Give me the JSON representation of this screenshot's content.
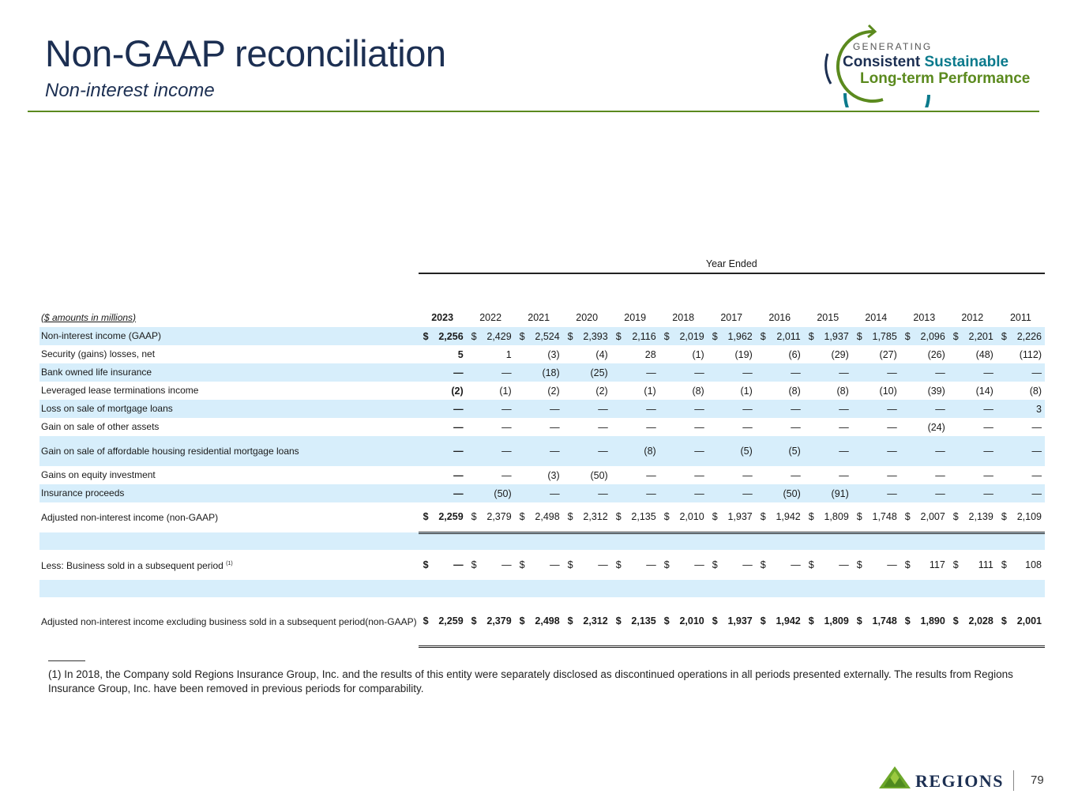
{
  "header": {
    "title": "Non-GAAP reconciliation",
    "subtitle": "Non-interest income"
  },
  "logo": {
    "line1": "GENERATING",
    "line2a": "Consistent",
    "line2b": "Sustainable",
    "line3": "Long-term Performance"
  },
  "table": {
    "year_ended": "Year Ended",
    "unit_label": "($ amounts in millions)",
    "years": [
      "2023",
      "2022",
      "2021",
      "2020",
      "2019",
      "2018",
      "2017",
      "2016",
      "2015",
      "2014",
      "2013",
      "2012",
      "2011"
    ],
    "rows": [
      {
        "label": "Non-interest income (GAAP)",
        "dollar": true,
        "values": [
          "2,256",
          "2,429",
          "2,524",
          "2,393",
          "2,116",
          "2,019",
          "1,962",
          "2,011",
          "1,937",
          "1,785",
          "2,096",
          "2,201",
          "2,226"
        ]
      },
      {
        "label": "Security (gains) losses, net",
        "values": [
          "5",
          "1",
          "(3)",
          "(4)",
          "28",
          "(1)",
          "(19)",
          "(6)",
          "(29)",
          "(27)",
          "(26)",
          "(48)",
          "(112)"
        ]
      },
      {
        "label": "Bank owned life insurance",
        "values": [
          "—",
          "—",
          "(18)",
          "(25)",
          "—",
          "—",
          "—",
          "—",
          "—",
          "—",
          "—",
          "—",
          "—"
        ]
      },
      {
        "label": "Leveraged lease terminations income",
        "values": [
          "(2)",
          "(1)",
          "(2)",
          "(2)",
          "(1)",
          "(8)",
          "(1)",
          "(8)",
          "(8)",
          "(10)",
          "(39)",
          "(14)",
          "(8)"
        ]
      },
      {
        "label": "Loss on sale of mortgage loans",
        "values": [
          "—",
          "—",
          "—",
          "—",
          "—",
          "—",
          "—",
          "—",
          "—",
          "—",
          "—",
          "—",
          "3"
        ]
      },
      {
        "label": "Gain on sale of other assets",
        "values": [
          "—",
          "—",
          "—",
          "—",
          "—",
          "—",
          "—",
          "—",
          "—",
          "—",
          "(24)",
          "—",
          "—"
        ]
      },
      {
        "label": "Gain on sale of affordable housing residential mortgage loans",
        "values": [
          "—",
          "—",
          "—",
          "—",
          "(8)",
          "—",
          "(5)",
          "(5)",
          "—",
          "—",
          "—",
          "—",
          "—"
        ]
      },
      {
        "label": "Gains on equity investment",
        "values": [
          "—",
          "—",
          "(3)",
          "(50)",
          "—",
          "—",
          "—",
          "—",
          "—",
          "—",
          "—",
          "—",
          "—"
        ]
      },
      {
        "label": "Insurance proceeds",
        "values": [
          "—",
          "(50)",
          "—",
          "—",
          "—",
          "—",
          "—",
          "(50)",
          "(91)",
          "—",
          "—",
          "—",
          "—"
        ]
      },
      {
        "label": "Adjusted non-interest income (non-GAAP)",
        "dollar": true,
        "values": [
          "2,259",
          "2,379",
          "2,498",
          "2,312",
          "2,135",
          "2,010",
          "1,937",
          "1,942",
          "1,809",
          "1,748",
          "2,007",
          "2,139",
          "2,109"
        ]
      },
      {
        "label": "Less: Business sold in a subsequent period",
        "sup": "(1)",
        "dollar": true,
        "values": [
          "—",
          "—",
          "—",
          "—",
          "—",
          "—",
          "—",
          "—",
          "—",
          "—",
          "117",
          "111",
          "108"
        ]
      },
      {
        "label": "Adjusted non-interest income excluding business sold in a subsequent period(non-GAAP)",
        "dollar": true,
        "values": [
          "2,259",
          "2,379",
          "2,498",
          "2,312",
          "2,135",
          "2,010",
          "1,937",
          "1,942",
          "1,809",
          "1,748",
          "1,890",
          "2,028",
          "2,001"
        ]
      }
    ]
  },
  "footnote": "(1)  In 2018, the Company sold Regions Insurance Group, Inc. and the results of this entity were separately disclosed as discontinued operations in all periods presented externally. The results from Regions Insurance Group, Inc. have been removed in previous periods for comparability.",
  "footer": {
    "brand": "REGIONS",
    "page_number": "79"
  },
  "colors": {
    "navy": "#1c2f52",
    "green": "#5b8a1e",
    "teal": "#0b7a8c",
    "row_blue": "#d7eefb"
  }
}
